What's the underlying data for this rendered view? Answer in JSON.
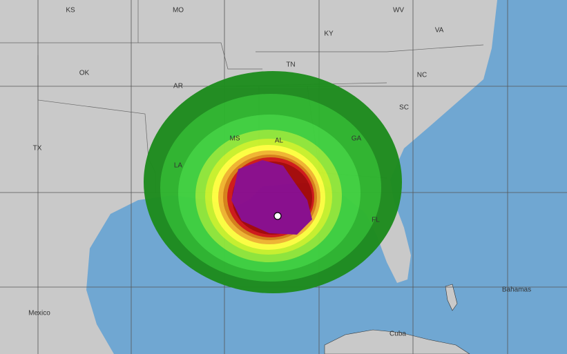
{
  "labels": [
    "KS",
    "MO",
    "WV",
    "KY",
    "VA",
    "OK",
    "TN",
    "NC",
    "AR",
    "SC",
    "TX",
    "MS",
    "AL",
    "GA",
    "LA",
    "FL",
    "Mexico",
    "Bahamas",
    "Cuba"
  ]
}
